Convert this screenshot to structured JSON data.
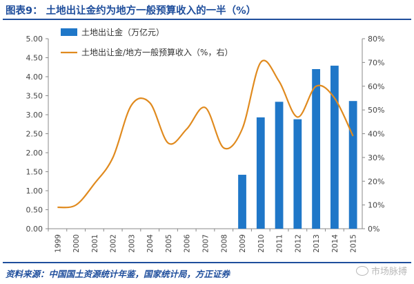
{
  "title": "图表9：  土地出让金约为地方一般预算收入的一半（%）",
  "source": "资料来源：中国国土资源统计年鉴，国家统计局，方正证券",
  "watermark": "市场脉搏",
  "colors": {
    "bar": "#1f77c8",
    "line": "#e08a1e",
    "title": "#1f4e9c"
  },
  "chart_data": {
    "type": "bar+line",
    "categories": [
      "1999",
      "2000",
      "2001",
      "2002",
      "2003",
      "2004",
      "2005",
      "2006",
      "2007",
      "2008",
      "2009",
      "2010",
      "2011",
      "2012",
      "2013",
      "2014",
      "2015"
    ],
    "series": [
      {
        "name": "土地出让金（万亿元）",
        "type": "bar",
        "axis": "left",
        "values": [
          null,
          null,
          null,
          null,
          null,
          null,
          null,
          null,
          null,
          null,
          1.42,
          2.93,
          3.34,
          2.88,
          4.2,
          4.29,
          3.36
        ]
      },
      {
        "name": "土地出让金/地方一般预算收入（%，右）",
        "type": "line",
        "axis": "right",
        "values": [
          9,
          10,
          19,
          30,
          52,
          53,
          36,
          42,
          51,
          34,
          42,
          70,
          62,
          47,
          60,
          55,
          39
        ]
      }
    ],
    "y_left": {
      "min": 0,
      "max": 5,
      "step": 0.5,
      "ticks": [
        "0.00",
        "0.50",
        "1.00",
        "1.50",
        "2.00",
        "2.50",
        "3.00",
        "3.50",
        "4.00",
        "4.50",
        "5.00"
      ]
    },
    "y_right": {
      "min": 0,
      "max": 80,
      "step": 10,
      "ticks": [
        "0%",
        "10%",
        "20%",
        "30%",
        "40%",
        "50%",
        "60%",
        "70%",
        "80%"
      ]
    },
    "legend_position": "top-left",
    "grid": false
  }
}
